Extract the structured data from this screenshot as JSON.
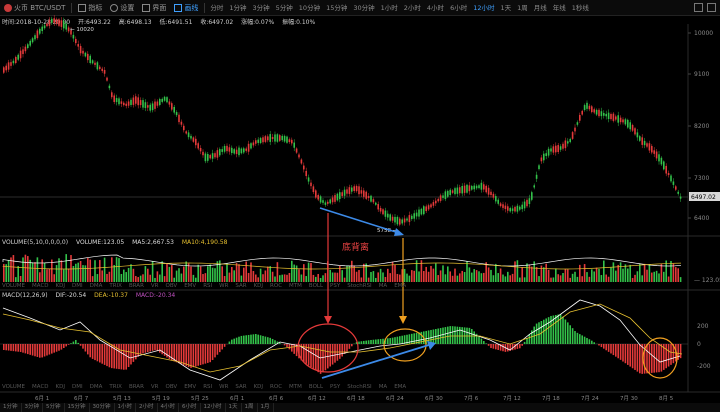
{
  "toolbar": {
    "exchange": "火币 BTC/USDT",
    "items": [
      "指标",
      "设置",
      "界面",
      "画线"
    ],
    "timeframes": [
      "分时",
      "1分钟",
      "3分钟",
      "5分钟",
      "10分钟",
      "15分钟",
      "30分钟",
      "1小时",
      "2小时",
      "4小时",
      "6小时",
      "12小时",
      "1天",
      "1周",
      "月线",
      "年线",
      "1秒线"
    ],
    "active_timeframe_index": 11
  },
  "infobar": {
    "time": "时间:2018-10-28 20:00",
    "open": "开:6493.22",
    "high": "高:6498.13",
    "low": "低:6491.51",
    "close": "收:6497.02",
    "change": "涨幅:0.07%",
    "amplitude": "振幅:0.10%"
  },
  "price_axis": [
    "10000",
    "9100",
    "8200",
    "7300",
    "6400"
  ],
  "current_price": "6497.02",
  "high_label": "10020",
  "low_label": "5758",
  "annotation_text": "底背离",
  "volume_panel": {
    "label": "VOLUME(5,10,0,0,0,0)",
    "volume": "VOLUME:123.05",
    "ma5": "MA5:2,667.53",
    "ma10": "MA10:4,190.58",
    "axis": [
      "123.05"
    ]
  },
  "macd_panel": {
    "label": "MACD(12,26,9)",
    "dif": "DIF:-20.54",
    "dea": "DEA:-10.37",
    "macd": "MACD:-20.34",
    "axis": [
      "200",
      "0",
      "-200"
    ]
  },
  "indicator_tabs": [
    "VOLUME",
    "MACD",
    "KDJ",
    "DMI",
    "DMA",
    "TRIX",
    "BRAR",
    "VR",
    "OBV",
    "EMV",
    "RSI",
    "WR",
    "SAR",
    "KDJ",
    "ROC",
    "MTM",
    "BOLL",
    "PSY",
    "StochRSI",
    "MA",
    "EMA"
  ],
  "date_axis": [
    "6月 1",
    "6月 7",
    "5月 13",
    "5月 19",
    "5月 25",
    "6月 1",
    "6月 6",
    "6月 12",
    "6月 18",
    "6月 24",
    "6月 30",
    "7月 6",
    "7月 12",
    "7月 18",
    "7月 24",
    "7月 30",
    "8月 5"
  ],
  "bottom_tabs": [
    "1分钟",
    "3分钟",
    "5分钟",
    "15分钟",
    "30分钟",
    "1小时",
    "2小时",
    "4小时",
    "6小时",
    "12小时",
    "1天",
    "1周",
    "1月"
  ],
  "colors": {
    "up": "#33c24a",
    "down": "#e43a3a",
    "arrow_blue": "#3c8ae8",
    "arrow_red": "#e43a3a",
    "arrow_yellow": "#f0a020",
    "circle_red": "#e43a3a",
    "circle_yellow": "#f0a020",
    "accent": "#3fa0ff"
  }
}
